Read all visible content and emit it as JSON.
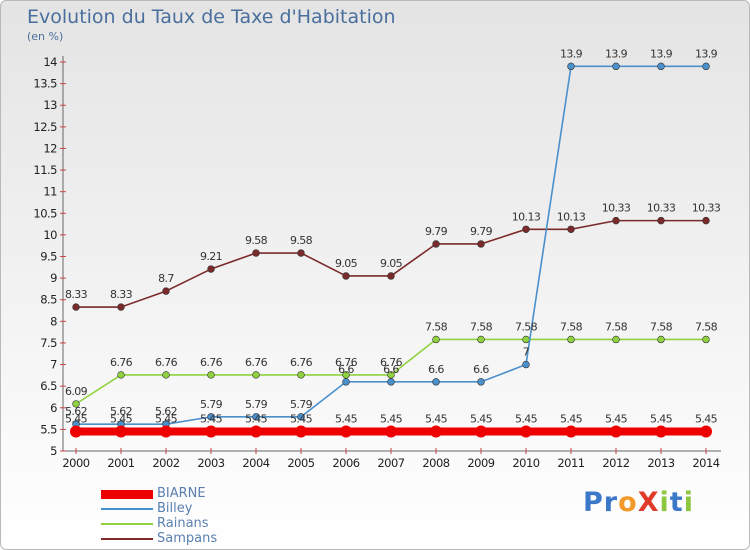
{
  "title": "Evolution du Taux de Taxe d'Habitation",
  "unit_label": "(en %)",
  "brand": "ProXiti",
  "chart_data": {
    "type": "line",
    "x": [
      2000,
      2001,
      2002,
      2003,
      2004,
      2005,
      2006,
      2007,
      2008,
      2009,
      2010,
      2011,
      2012,
      2013,
      2014
    ],
    "ylim": [
      5,
      14
    ],
    "yticks": [
      5,
      5.5,
      6,
      6.5,
      7,
      7.5,
      8,
      8.5,
      9,
      9.5,
      10,
      10.5,
      11,
      11.5,
      12,
      12.5,
      13,
      13.5,
      14
    ],
    "ytick_labels": [
      "5",
      "5.5",
      "6",
      "6.5",
      "7",
      "7.5",
      "8",
      "8.5",
      "9",
      "9.5",
      "10",
      "10.5",
      "11",
      "11.5",
      "12",
      "12.5",
      "13",
      "13.5",
      "14"
    ],
    "grid": false,
    "legend_position": "bottom-left",
    "series": [
      {
        "name": "BIARNE",
        "color": "#ee0000",
        "values": [
          5.45,
          5.45,
          5.45,
          5.45,
          5.45,
          5.45,
          5.45,
          5.45,
          5.45,
          5.45,
          5.45,
          5.45,
          5.45,
          5.45,
          5.45
        ],
        "labels": [
          "5.45",
          "5.45",
          "5.45",
          "5.45",
          "5.45",
          "5.45",
          "5.45",
          "5.45",
          "5.45",
          "5.45",
          "5.45",
          "5.45",
          "5.45",
          "5.45",
          "5.45"
        ]
      },
      {
        "name": "Billey",
        "color": "#4a90cc",
        "values": [
          5.62,
          5.62,
          5.62,
          5.79,
          5.79,
          5.79,
          6.6,
          6.6,
          6.6,
          6.6,
          7,
          13.9,
          13.9,
          13.9,
          13.9
        ],
        "labels": [
          "5.62",
          "5.62",
          "5.62",
          "5.79",
          "5.79",
          "5.79",
          "6.6",
          "6.6",
          "6.6",
          "6.6",
          "7",
          "13.9",
          "13.9",
          "13.9",
          "13.9"
        ]
      },
      {
        "name": "Rainans",
        "color": "#8fd13f",
        "values": [
          6.09,
          6.76,
          6.76,
          6.76,
          6.76,
          6.76,
          6.76,
          6.76,
          7.58,
          7.58,
          7.58,
          7.58,
          7.58,
          7.58,
          7.58
        ],
        "labels": [
          "6.09",
          "6.76",
          "6.76",
          "6.76",
          "6.76",
          "6.76",
          "6.76",
          "6.76",
          "7.58",
          "7.58",
          "7.58",
          "7.58",
          "7.58",
          "7.58",
          "7.58"
        ]
      },
      {
        "name": "Sampans",
        "color": "#7a2a2a",
        "values": [
          8.33,
          8.33,
          8.7,
          9.21,
          9.58,
          9.58,
          9.05,
          9.05,
          9.79,
          9.79,
          10.13,
          10.13,
          10.33,
          10.33,
          10.33
        ],
        "labels": [
          "8.33",
          "8.33",
          "8.7",
          "9.21",
          "9.58",
          "9.58",
          "9.05",
          "9.05",
          "9.79",
          "9.79",
          "10.13",
          "10.13",
          "10.33",
          "10.33",
          "10.33"
        ]
      }
    ]
  }
}
